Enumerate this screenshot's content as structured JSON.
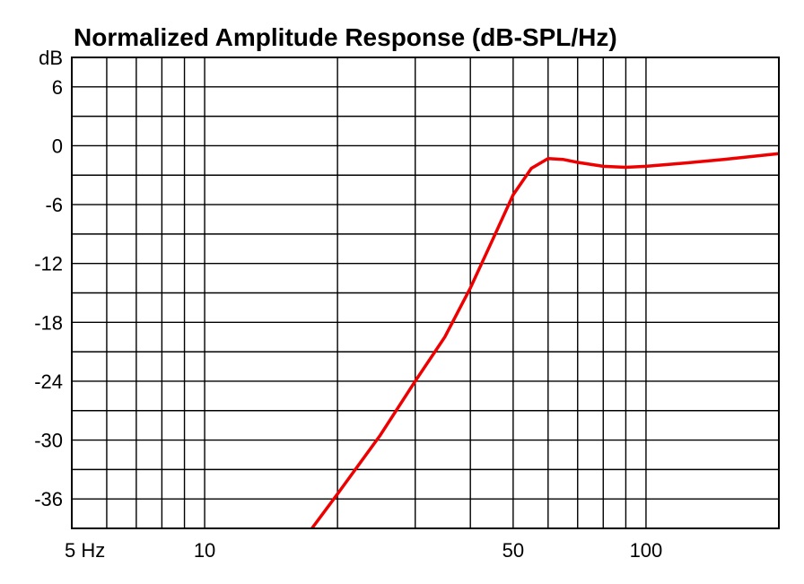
{
  "chart_data": {
    "type": "line",
    "title": "Normalized Amplitude Response (dB-SPL/Hz)",
    "x_scale": "log",
    "xlim": [
      5,
      200
    ],
    "ylim": [
      -39,
      9
    ],
    "x_ticks": [
      {
        "value": 5,
        "label": "5 Hz"
      },
      {
        "value": 10,
        "label": "10"
      },
      {
        "value": 50,
        "label": "50"
      },
      {
        "value": 100,
        "label": "100"
      }
    ],
    "y_ticks": [
      {
        "value": 6,
        "label": "6"
      },
      {
        "value": 0,
        "label": "0"
      },
      {
        "value": -6,
        "label": "-6"
      },
      {
        "value": -12,
        "label": "-12"
      },
      {
        "value": -18,
        "label": "-18"
      },
      {
        "value": -24,
        "label": "-24"
      },
      {
        "value": -30,
        "label": "-30"
      },
      {
        "value": -36,
        "label": "-36"
      }
    ],
    "y_unit_label": {
      "value": 9,
      "label": "dB"
    },
    "grid": true,
    "series": [
      {
        "color": "#ee0000",
        "x": [
          17.5,
          20,
          25,
          30,
          35,
          40,
          45,
          50,
          55,
          60,
          65,
          70,
          80,
          90,
          100,
          120,
          150,
          200
        ],
        "y": [
          -39,
          -35.5,
          -29.5,
          -24,
          -19.5,
          -14.5,
          -9.5,
          -5,
          -2.3,
          -1.3,
          -1.4,
          -1.7,
          -2.1,
          -2.2,
          -2.1,
          -1.8,
          -1.4,
          -0.8
        ]
      }
    ]
  }
}
